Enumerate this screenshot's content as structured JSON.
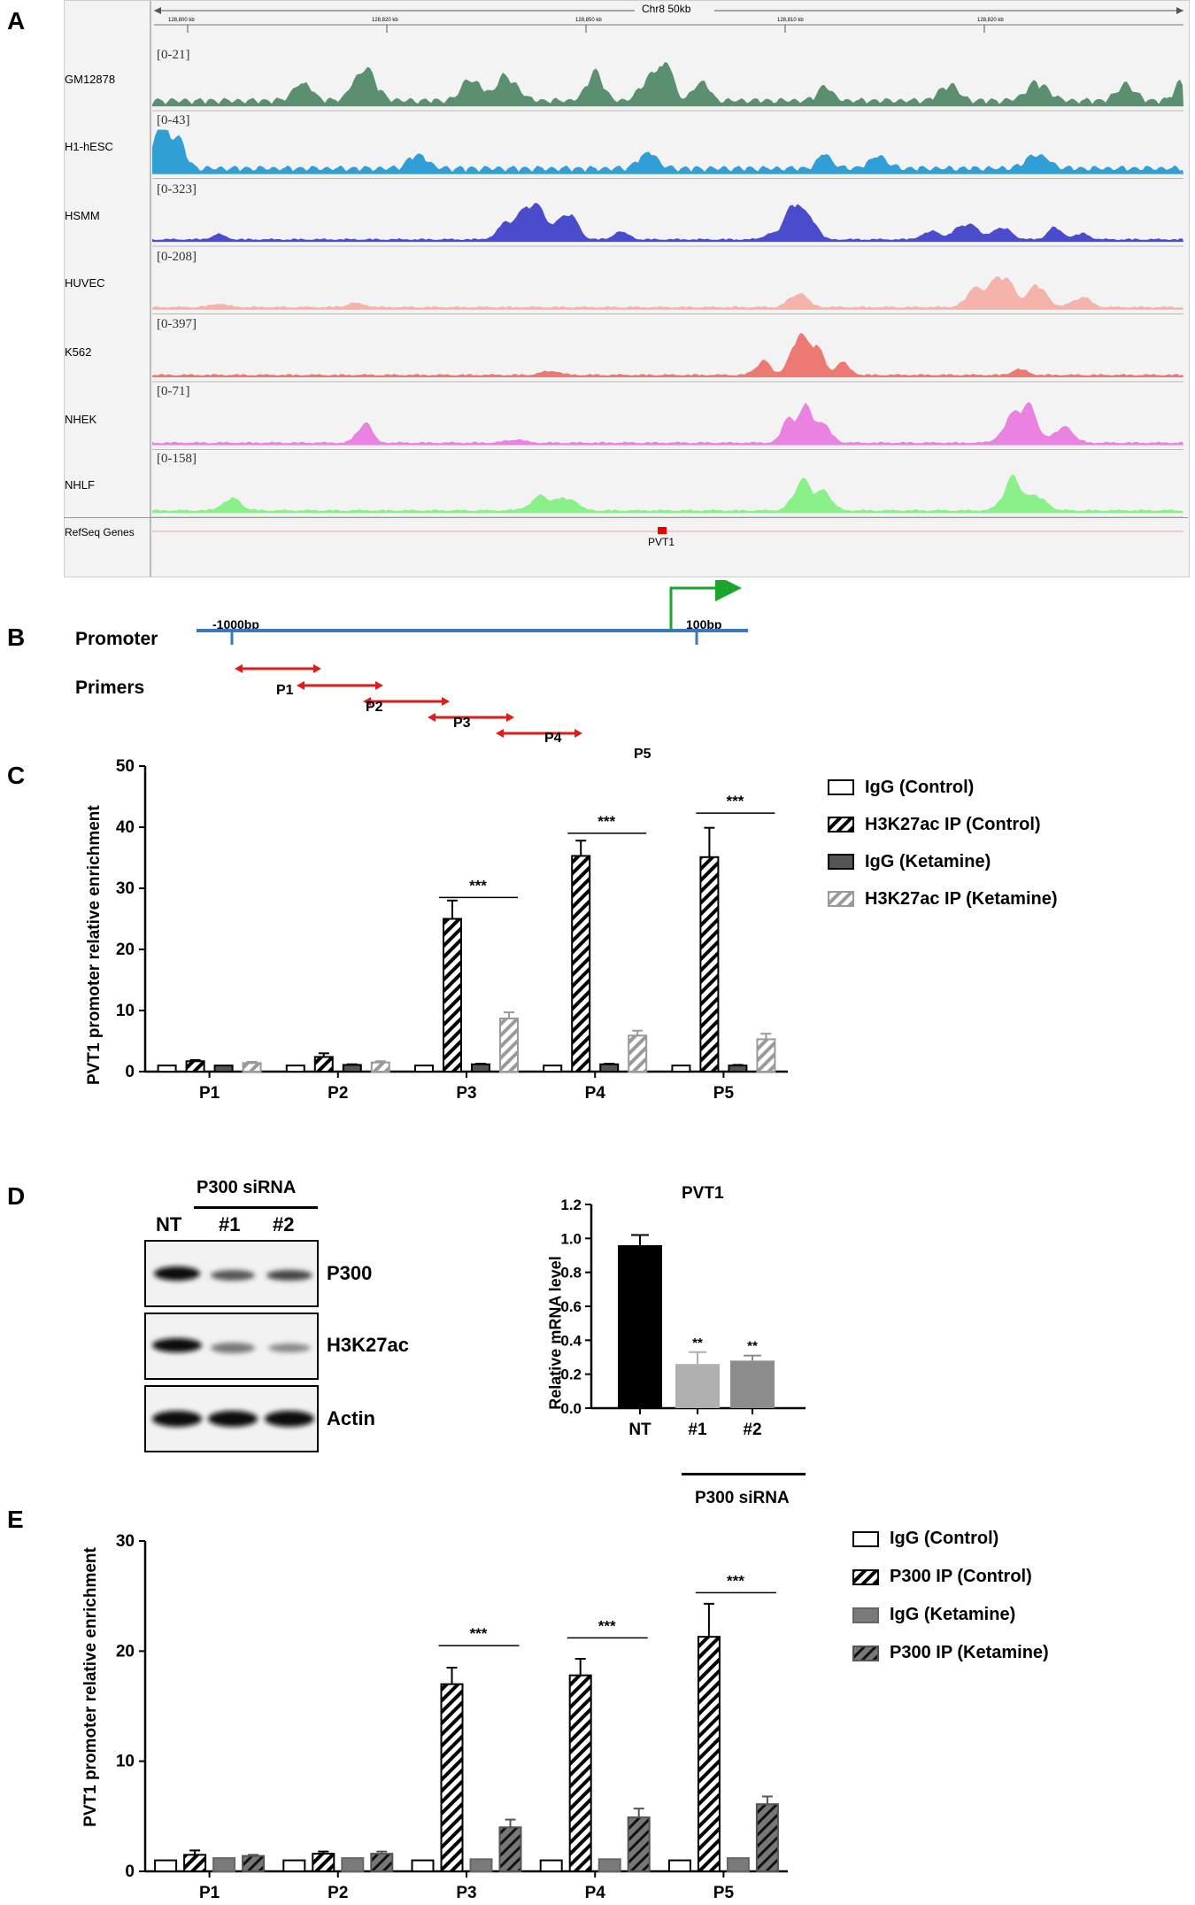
{
  "panels": {
    "a": "A",
    "b": "B",
    "c": "C",
    "d": "D",
    "e": "E"
  },
  "panel_a": {
    "locus": "Chr8 50kb",
    "ruler_ticks": [
      "128,800 kb",
      "128,820 kb",
      "128,850 kb",
      "128,810 kb",
      "128,820 kb"
    ],
    "tracks": [
      {
        "name": "GM12878",
        "range": "[0-21]",
        "color": "#5a8f6f"
      },
      {
        "name": "H1-hESC",
        "range": "[0-43]",
        "color": "#2f9fd6"
      },
      {
        "name": "HSMM",
        "range": "[0-323]",
        "color": "#4a4ccc"
      },
      {
        "name": "HUVEC",
        "range": "[0-208]",
        "color": "#f4b3ab"
      },
      {
        "name": "K562",
        "range": "[0-397]",
        "color": "#ec7a72"
      },
      {
        "name": "NHEK",
        "range": "[0-71]",
        "color": "#ea82e2"
      },
      {
        "name": "NHLF",
        "range": "[0-158]",
        "color": "#8cf08a"
      }
    ],
    "refseq_label": "RefSeq Genes",
    "gene": "PVT1"
  },
  "panel_b": {
    "promoter_label": "Promoter",
    "primers_label": "Primers",
    "start_label": "-1000bp",
    "end_label": "100bp",
    "primers": [
      "P1",
      "P2",
      "P3",
      "P4",
      "P5"
    ]
  },
  "panel_c": {
    "legend": [
      "IgG (Control)",
      "H3K27ac IP (Control)",
      "IgG (Ketamine)",
      "H3K27ac IP (Ketamine)"
    ],
    "significance": [
      "***",
      "***",
      "***"
    ]
  },
  "panel_d": {
    "blot_header": "P300 siRNA",
    "lanes": [
      "NT",
      "#1",
      "#2"
    ],
    "bands": [
      "P300",
      "H3K27ac",
      "Actin"
    ],
    "bar_group_label": "P300 siRNA",
    "bar_significance": [
      "**",
      "**"
    ]
  },
  "panel_e": {
    "legend": [
      "IgG (Control)",
      "P300 IP (Control)",
      "IgG (Ketamine)",
      "P300 IP (Ketamine)"
    ],
    "significance": [
      "***",
      "***",
      "***"
    ]
  },
  "chart_data": [
    {
      "id": "C",
      "type": "bar",
      "categories": [
        "P1",
        "P2",
        "P3",
        "P4",
        "P5"
      ],
      "ylabel": "PVT1 promoter relative enrichment",
      "ylim": [
        0,
        50
      ],
      "yticks": [
        0,
        10,
        20,
        30,
        40,
        50
      ],
      "series": [
        {
          "name": "IgG (Control)",
          "values": [
            1,
            1,
            1,
            1,
            1
          ],
          "errors": [
            0,
            0,
            0,
            0,
            0
          ]
        },
        {
          "name": "H3K27ac IP (Control)",
          "values": [
            1.7,
            2.4,
            25,
            35.3,
            35.1
          ],
          "errors": [
            0.2,
            0.6,
            3,
            2.5,
            4.8
          ]
        },
        {
          "name": "IgG (Ketamine)",
          "values": [
            1,
            1.1,
            1.2,
            1.2,
            1
          ],
          "errors": [
            0,
            0.1,
            0.1,
            0.1,
            0.1
          ]
        },
        {
          "name": "H3K27ac IP (Ketamine)",
          "values": [
            1.4,
            1.5,
            8.7,
            5.9,
            5.3
          ],
          "errors": [
            0.2,
            0.2,
            1,
            0.8,
            0.9
          ]
        }
      ],
      "brackets": [
        {
          "category": "P3",
          "y": 28.5
        },
        {
          "category": "P4",
          "y": 39
        },
        {
          "category": "P5",
          "y": 42.3
        }
      ]
    },
    {
      "id": "D",
      "type": "bar",
      "title": "PVT1",
      "categories": [
        "NT",
        "#1",
        "#2"
      ],
      "values": [
        0.96,
        0.26,
        0.28
      ],
      "errors": [
        0.06,
        0.07,
        0.03
      ],
      "ylabel": "Relative mRNA level",
      "ylim": [
        0,
        1.2
      ],
      "yticks": [
        "0.0",
        "0.2",
        "0.4",
        "0.6",
        "0.8",
        "1.0",
        "1.2"
      ],
      "colors": [
        "#000000",
        "#b0b0b0",
        "#8c8c8c"
      ]
    },
    {
      "id": "E",
      "type": "bar",
      "categories": [
        "P1",
        "P2",
        "P3",
        "P4",
        "P5"
      ],
      "ylabel": "PVT1 promoter relative enrichment",
      "ylim": [
        0,
        30
      ],
      "yticks": [
        0,
        10,
        20,
        30
      ],
      "series": [
        {
          "name": "IgG (Control)",
          "values": [
            1,
            1,
            1,
            1,
            1
          ],
          "errors": [
            0,
            0,
            0,
            0,
            0
          ]
        },
        {
          "name": "P300 IP (Control)",
          "values": [
            1.5,
            1.6,
            17,
            17.8,
            21.3
          ],
          "errors": [
            0.4,
            0.2,
            1.5,
            1.5,
            3
          ]
        },
        {
          "name": "IgG (Ketamine)",
          "values": [
            1.2,
            1.2,
            1.1,
            1.1,
            1.2
          ],
          "errors": [
            0,
            0,
            0,
            0,
            0
          ]
        },
        {
          "name": "P300 IP (Ketamine)",
          "values": [
            1.4,
            1.6,
            4,
            4.9,
            6.1
          ],
          "errors": [
            0.1,
            0.2,
            0.7,
            0.8,
            0.7
          ]
        }
      ],
      "brackets": [
        {
          "category": "P3",
          "y": 20.5
        },
        {
          "category": "P4",
          "y": 21.2
        },
        {
          "category": "P5",
          "y": 25.3
        }
      ]
    }
  ]
}
